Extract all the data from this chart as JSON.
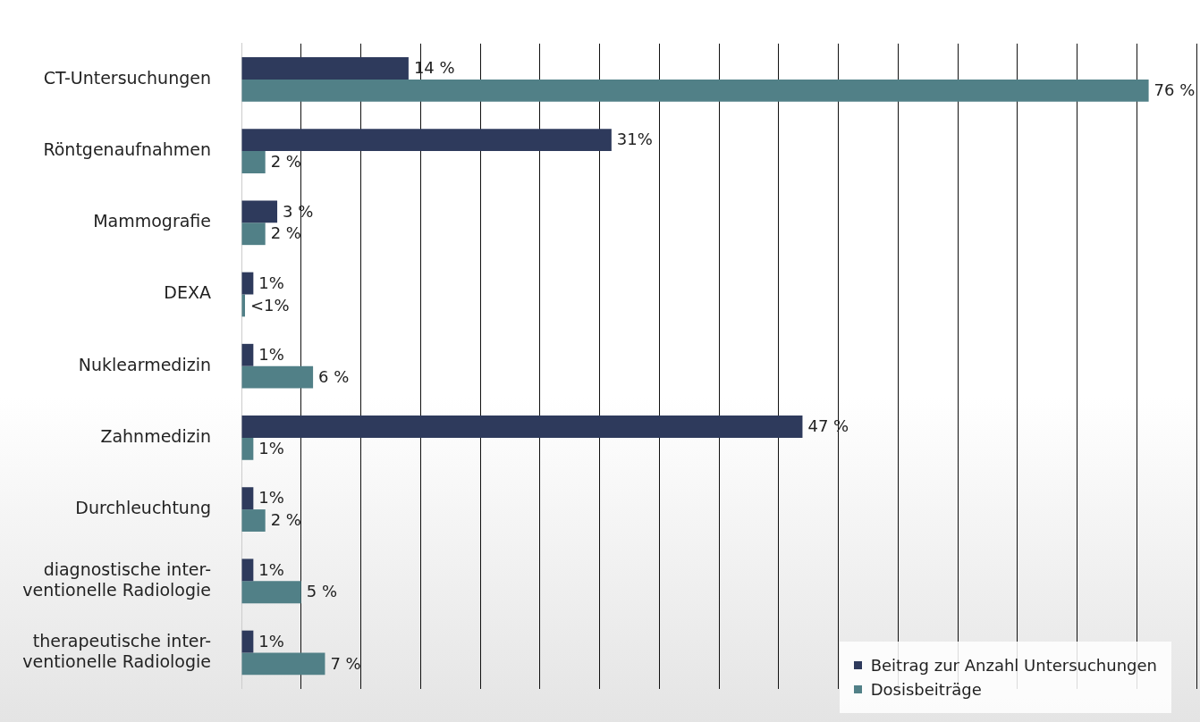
{
  "chart_data": {
    "type": "bar",
    "orientation": "horizontal",
    "categories": [
      "CT-Untersuchungen",
      "Röntgenaufnahmen",
      "Mammografie",
      "DEXA",
      "Nuklearmedizin",
      "Zahnmedizin",
      "Durchleuchtung",
      "diagnostische inter-ventionelle Radiologie",
      "therapeutische inter-ventionelle Radiologie"
    ],
    "series": [
      {
        "name": "Beitrag zur Anzahl Untersuchungen",
        "color": "#2e3a5c",
        "values": [
          14,
          31,
          3,
          1,
          1,
          47,
          1,
          1,
          1
        ],
        "value_labels": [
          "14 %",
          "31%",
          "3 %",
          "1%",
          "1%",
          "47 %",
          "1%",
          "1%",
          "1%"
        ]
      },
      {
        "name": "Dosisbeiträge",
        "color": "#518087",
        "values": [
          76,
          2,
          2,
          0.3,
          6,
          1,
          2,
          5,
          7
        ],
        "value_labels": [
          "76 %",
          "2 %",
          "2 %",
          "<1%",
          "6 %",
          "1%",
          "2 %",
          "5 %",
          "7 %"
        ]
      }
    ],
    "xlim": [
      0,
      80
    ],
    "xticks": [
      0,
      5,
      10,
      15,
      20,
      25,
      30,
      35,
      40,
      45,
      50,
      55,
      60,
      65,
      70,
      75,
      80
    ],
    "tick_labels": "y",
    "grid": "x",
    "legend": "bottom right"
  }
}
